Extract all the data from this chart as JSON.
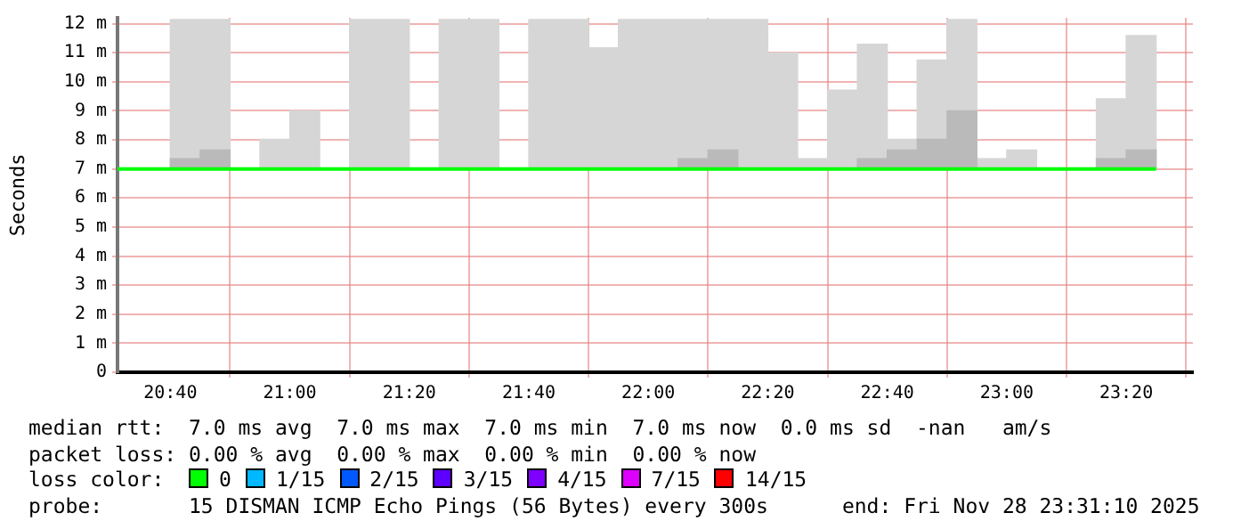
{
  "chart_data": {
    "type": "bar",
    "ylabel": "Seconds",
    "legend_title": "loss color:",
    "legend": "bottom",
    "grid": true,
    "xlim": [
      20.5194,
      23.5194
    ],
    "xticks": [
      {
        "value": 20.6667,
        "label": "20:40"
      },
      {
        "value": 21,
        "label": "21:00"
      },
      {
        "value": 21.3333,
        "label": "21:20"
      },
      {
        "value": 21.6667,
        "label": "21:40"
      },
      {
        "value": 22,
        "label": "22:00"
      },
      {
        "value": 22.3333,
        "label": "22:20"
      },
      {
        "value": 22.6667,
        "label": "22:40"
      },
      {
        "value": 23,
        "label": "23:00"
      },
      {
        "value": 23.3333,
        "label": "23:20"
      }
    ],
    "ylim": [
      0,
      12.2
    ],
    "yticks": [
      0,
      {
        "value": 1,
        "label": "1 m"
      },
      {
        "value": 2,
        "label": "2 m"
      },
      {
        "value": 3,
        "label": "3 m"
      },
      {
        "value": 4,
        "label": "4 m"
      },
      {
        "value": 5,
        "label": "5 m"
      },
      {
        "value": 6,
        "label": "6 m"
      },
      {
        "value": 7,
        "label": "7 m"
      },
      {
        "value": 8,
        "label": "8 m"
      },
      {
        "value": 9,
        "label": "9 m"
      },
      {
        "value": 10,
        "label": "10 m"
      },
      {
        "value": 11,
        "label": "11 m"
      },
      {
        "value": 12,
        "label": "12 m"
      }
    ],
    "x": [
      20.7083,
      20.7917,
      20.875,
      20.9583,
      21.0417,
      21.125,
      21.2083,
      21.2917,
      21.375,
      21.4583,
      21.5417,
      21.625,
      21.7083,
      21.7917,
      21.875,
      21.9583,
      22.0417,
      22.125,
      22.2083,
      22.2917,
      22.375,
      22.4583,
      22.5417,
      22.625,
      22.7083,
      22.7917,
      22.875,
      22.9583,
      23.0417,
      23.125,
      23.2083,
      23.2917,
      23.375
    ],
    "series": [
      {
        "color": "#d6d6d6",
        "base": [
          7,
          7,
          null,
          7,
          7,
          null,
          7,
          7,
          null,
          7,
          7,
          null,
          7,
          7,
          7,
          7,
          7,
          7,
          7,
          7,
          7,
          7,
          7,
          7,
          7,
          7,
          7,
          7,
          7,
          null,
          null,
          7,
          7
        ],
        "values": [
          5.14,
          5.14,
          null,
          1.02,
          2.0,
          null,
          5.14,
          5.14,
          null,
          5.14,
          5.14,
          null,
          5.14,
          5.14,
          4.17,
          5.14,
          5.14,
          5.14,
          5.14,
          5.14,
          3.99,
          0.35,
          2.71,
          4.29,
          1.02,
          3.75,
          5.14,
          0.35,
          0.65,
          null,
          null,
          2.41,
          4.59
        ]
      },
      {
        "color": "#bababa",
        "base": [
          7,
          7,
          null,
          null,
          null,
          null,
          null,
          null,
          null,
          null,
          null,
          null,
          null,
          null,
          null,
          null,
          null,
          7,
          7,
          null,
          null,
          null,
          null,
          7,
          7,
          7,
          7,
          null,
          null,
          null,
          null,
          7,
          7
        ],
        "values": [
          0.35,
          0.65,
          null,
          null,
          null,
          null,
          null,
          null,
          null,
          null,
          null,
          null,
          null,
          null,
          null,
          null,
          null,
          0.35,
          0.65,
          null,
          null,
          null,
          null,
          0.35,
          0.65,
          1.02,
          2.0,
          null,
          null,
          null,
          null,
          0.35,
          0.65
        ]
      },
      {
        "type": "line",
        "name": "0",
        "color": "#00ff00",
        "x": [
          20.5194,
          23.4167
        ],
        "values": [
          7,
          7
        ]
      },
      {
        "type": "line",
        "name": "1/15",
        "color": "#00b8ff",
        "values": [
          null,
          null,
          null,
          null,
          null,
          null,
          null,
          null,
          null,
          null,
          null,
          null,
          null,
          null,
          null,
          null,
          null,
          null,
          null,
          null,
          null,
          null,
          null,
          null,
          null,
          null,
          null,
          null,
          null,
          null,
          null,
          null,
          null
        ]
      },
      {
        "type": "line",
        "name": "2/15",
        "color": "#0059ff",
        "values": [
          null,
          null,
          null,
          null,
          null,
          null,
          null,
          null,
          null,
          null,
          null,
          null,
          null,
          null,
          null,
          null,
          null,
          null,
          null,
          null,
          null,
          null,
          null,
          null,
          null,
          null,
          null,
          null,
          null,
          null,
          null,
          null,
          null
        ]
      },
      {
        "type": "line",
        "name": "3/15",
        "color": "#5e00ff",
        "values": [
          null,
          null,
          null,
          null,
          null,
          null,
          null,
          null,
          null,
          null,
          null,
          null,
          null,
          null,
          null,
          null,
          null,
          null,
          null,
          null,
          null,
          null,
          null,
          null,
          null,
          null,
          null,
          null,
          null,
          null,
          null,
          null,
          null
        ]
      },
      {
        "type": "line",
        "name": "4/15",
        "color": "#7e00ff",
        "values": [
          null,
          null,
          null,
          null,
          null,
          null,
          null,
          null,
          null,
          null,
          null,
          null,
          null,
          null,
          null,
          null,
          null,
          null,
          null,
          null,
          null,
          null,
          null,
          null,
          null,
          null,
          null,
          null,
          null,
          null,
          null,
          null,
          null
        ]
      },
      {
        "type": "line",
        "name": "7/15",
        "color": "#dd00ff",
        "values": [
          null,
          null,
          null,
          null,
          null,
          null,
          null,
          null,
          null,
          null,
          null,
          null,
          null,
          null,
          null,
          null,
          null,
          null,
          null,
          null,
          null,
          null,
          null,
          null,
          null,
          null,
          null,
          null,
          null,
          null,
          null,
          null,
          null
        ]
      },
      {
        "type": "line",
        "name": "14/15",
        "color": "#ff0000",
        "values": [
          null,
          null,
          null,
          null,
          null,
          null,
          null,
          null,
          null,
          null,
          null,
          null,
          null,
          null,
          null,
          null,
          null,
          null,
          null,
          null,
          null,
          null,
          null,
          null,
          null,
          null,
          null,
          null,
          null,
          null,
          null,
          null,
          null
        ]
      }
    ],
    "annotations": [
      "median rtt:  7.0 ms avg  7.0 ms max  7.0 ms min  7.0 ms now  0.0 ms sd  -nan   am/s",
      "packet loss: 0.00 % avg  0.00 % max  0.00 % min  0.00 % now",
      "probe:       15 DISMAN ICMP Echo Pings (56 Bytes) every 300s      end: Fri Nov 28 23:31:10 2025"
    ]
  }
}
